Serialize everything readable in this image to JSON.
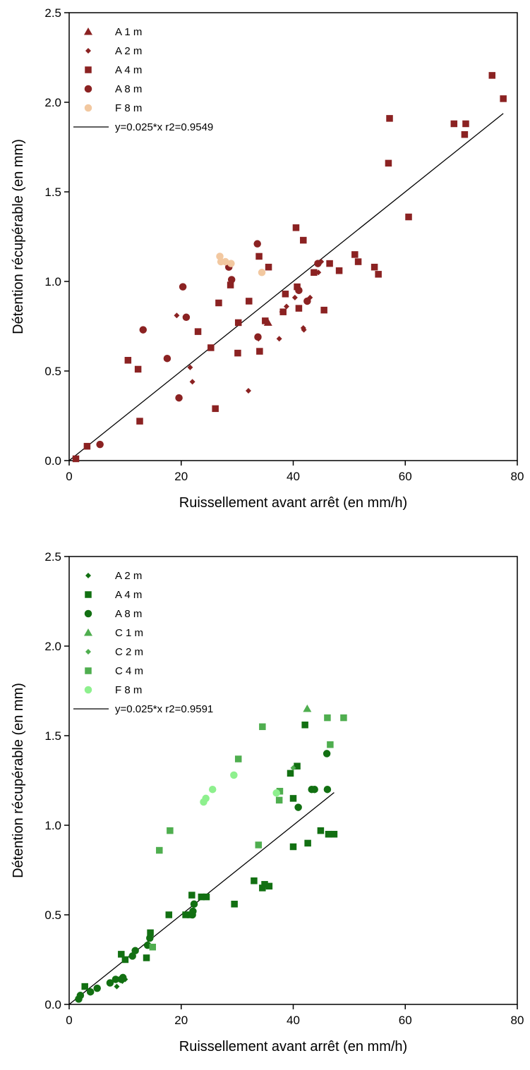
{
  "chart_data": [
    {
      "type": "scatter",
      "xlabel": "Ruissellement avant arrêt (en mm/h)",
      "ylabel": "Détention récupérable (en mm)",
      "xlim": [
        0,
        80
      ],
      "ylim": [
        0,
        2.5
      ],
      "xticks": [
        "0",
        "20",
        "40",
        "60",
        "80"
      ],
      "yticks": [
        "0.0",
        "0.5",
        "1.0",
        "1.5",
        "2.0",
        "2.5"
      ],
      "legend_position": "top-left",
      "fit": {
        "label": "y=0.025*x  r2=0.9549",
        "slope": 0.025,
        "x_range": [
          0,
          77.5
        ]
      },
      "series": [
        {
          "name": "A 1 m",
          "marker": "triangle",
          "color": "#8b2222",
          "points": [
            [
              35.5,
              0.77
            ]
          ]
        },
        {
          "name": "A 2 m",
          "marker": "diamond",
          "color": "#8b2222",
          "points": [
            [
              19.2,
              0.81
            ],
            [
              21.6,
              0.52
            ],
            [
              22.0,
              0.44
            ],
            [
              32.0,
              0.39
            ],
            [
              33.8,
              0.68
            ],
            [
              37.5,
              0.68
            ],
            [
              38.0,
              0.83
            ],
            [
              38.8,
              0.86
            ],
            [
              40.3,
              0.91
            ],
            [
              41.8,
              0.74
            ],
            [
              41.9,
              0.73
            ],
            [
              43.0,
              0.91
            ],
            [
              44.5,
              1.05
            ],
            [
              45.0,
              1.11
            ]
          ]
        },
        {
          "name": "A 4 m",
          "marker": "square",
          "color": "#8b2222",
          "points": [
            [
              1.2,
              0.01
            ],
            [
              3.2,
              0.08
            ],
            [
              10.5,
              0.56
            ],
            [
              12.3,
              0.51
            ],
            [
              12.6,
              0.22
            ],
            [
              23.0,
              0.72
            ],
            [
              25.3,
              0.63
            ],
            [
              26.1,
              0.29
            ],
            [
              26.7,
              0.88
            ],
            [
              28.8,
              0.98
            ],
            [
              30.2,
              0.77
            ],
            [
              30.1,
              0.6
            ],
            [
              32.1,
              0.89
            ],
            [
              33.9,
              1.14
            ],
            [
              34.0,
              0.61
            ],
            [
              35.0,
              0.78
            ],
            [
              35.6,
              1.08
            ],
            [
              38.2,
              0.83
            ],
            [
              38.6,
              0.93
            ],
            [
              40.5,
              1.3
            ],
            [
              40.7,
              0.97
            ],
            [
              41.0,
              0.85
            ],
            [
              41.8,
              1.23
            ],
            [
              43.7,
              1.05
            ],
            [
              45.5,
              0.84
            ],
            [
              46.5,
              1.1
            ],
            [
              48.2,
              1.06
            ],
            [
              51.0,
              1.15
            ],
            [
              51.6,
              1.11
            ],
            [
              54.5,
              1.08
            ],
            [
              55.2,
              1.04
            ],
            [
              57.0,
              1.66
            ],
            [
              57.2,
              1.91
            ],
            [
              60.6,
              1.36
            ],
            [
              68.7,
              1.88
            ],
            [
              70.6,
              1.82
            ],
            [
              70.8,
              1.88
            ],
            [
              75.5,
              2.15
            ],
            [
              77.5,
              2.02
            ]
          ]
        },
        {
          "name": "A 8 m",
          "marker": "circle",
          "color": "#8b2222",
          "points": [
            [
              5.5,
              0.09
            ],
            [
              13.2,
              0.73
            ],
            [
              17.5,
              0.57
            ],
            [
              19.6,
              0.35
            ],
            [
              20.3,
              0.97
            ],
            [
              20.9,
              0.8
            ],
            [
              28.5,
              1.08
            ],
            [
              29.0,
              1.01
            ],
            [
              33.6,
              1.21
            ],
            [
              33.7,
              0.69
            ],
            [
              41.0,
              0.95
            ],
            [
              42.5,
              0.89
            ],
            [
              44.4,
              1.1
            ]
          ]
        },
        {
          "name": "F 8 m",
          "marker": "circle",
          "color": "#f2c8a0",
          "points": [
            [
              26.9,
              1.14
            ],
            [
              27.1,
              1.11
            ],
            [
              27.9,
              1.11
            ],
            [
              28.9,
              1.1
            ],
            [
              34.4,
              1.05
            ]
          ]
        }
      ]
    },
    {
      "type": "scatter",
      "xlabel": "Ruissellement avant arrêt (en mm/h)",
      "ylabel": "Détention récupérable (en mm)",
      "xlim": [
        0,
        80
      ],
      "ylim": [
        0,
        2.5
      ],
      "xticks": [
        "0",
        "20",
        "40",
        "60",
        "80"
      ],
      "yticks": [
        "0.0",
        "0.5",
        "1.0",
        "1.5",
        "2.0",
        "2.5"
      ],
      "legend_position": "top-left",
      "fit": {
        "label": "y=0.025*x  r2=0.9591",
        "slope": 0.025,
        "x_range": [
          0,
          47.3
        ]
      },
      "series": [
        {
          "name": "A 2 m",
          "marker": "diamond",
          "color": "#127012",
          "points": [
            [
              8.5,
              0.1
            ],
            [
              9.5,
              0.13
            ],
            [
              10.0,
              0.14
            ]
          ]
        },
        {
          "name": "A 4 m",
          "marker": "square",
          "color": "#127012",
          "points": [
            [
              2.8,
              0.1
            ],
            [
              9.3,
              0.28
            ],
            [
              10.0,
              0.25
            ],
            [
              13.8,
              0.26
            ],
            [
              14.5,
              0.4
            ],
            [
              17.8,
              0.5
            ],
            [
              20.8,
              0.5
            ],
            [
              21.6,
              0.5
            ],
            [
              21.9,
              0.61
            ],
            [
              23.6,
              0.6
            ],
            [
              24.5,
              0.6
            ],
            [
              29.5,
              0.56
            ],
            [
              33.0,
              0.69
            ],
            [
              34.5,
              0.65
            ],
            [
              34.9,
              0.67
            ],
            [
              35.7,
              0.66
            ],
            [
              39.5,
              1.29
            ],
            [
              40.0,
              1.15
            ],
            [
              40.0,
              0.88
            ],
            [
              40.7,
              1.33
            ],
            [
              42.1,
              1.56
            ],
            [
              42.6,
              0.9
            ],
            [
              44.9,
              0.97
            ],
            [
              46.3,
              0.95
            ],
            [
              47.3,
              0.95
            ]
          ]
        },
        {
          "name": "A 8 m",
          "marker": "circle",
          "color": "#127012",
          "points": [
            [
              1.7,
              0.03
            ],
            [
              2.0,
              0.05
            ],
            [
              3.8,
              0.07
            ],
            [
              5.0,
              0.09
            ],
            [
              7.3,
              0.12
            ],
            [
              8.3,
              0.14
            ],
            [
              9.3,
              0.14
            ],
            [
              9.6,
              0.15
            ],
            [
              11.3,
              0.27
            ],
            [
              11.8,
              0.3
            ],
            [
              14.0,
              0.33
            ],
            [
              14.4,
              0.37
            ],
            [
              22.0,
              0.5
            ],
            [
              22.1,
              0.52
            ],
            [
              22.3,
              0.56
            ],
            [
              40.9,
              1.1
            ],
            [
              43.3,
              1.2
            ],
            [
              43.8,
              1.2
            ],
            [
              46.0,
              1.4
            ],
            [
              46.1,
              1.2
            ]
          ]
        },
        {
          "name": "C 1 m",
          "marker": "triangle",
          "color": "#4fae4f",
          "points": [
            [
              42.5,
              1.65
            ]
          ]
        },
        {
          "name": "C 2 m",
          "marker": "diamond",
          "color": "#4fae4f",
          "points": [
            [
              40.0,
              1.32
            ]
          ]
        },
        {
          "name": "C 4 m",
          "marker": "square",
          "color": "#4fae4f",
          "points": [
            [
              14.9,
              0.32
            ],
            [
              16.1,
              0.86
            ],
            [
              18.0,
              0.97
            ],
            [
              30.2,
              1.37
            ],
            [
              33.8,
              0.89
            ],
            [
              34.5,
              1.55
            ],
            [
              37.6,
              1.19
            ],
            [
              37.5,
              1.14
            ],
            [
              46.1,
              1.6
            ],
            [
              46.6,
              1.45
            ],
            [
              49.0,
              1.6
            ]
          ]
        },
        {
          "name": "F 8 m",
          "marker": "circle",
          "color": "#8ef08e",
          "points": [
            [
              24.0,
              1.13
            ],
            [
              24.4,
              1.15
            ],
            [
              25.6,
              1.2
            ],
            [
              29.4,
              1.28
            ],
            [
              37.0,
              1.18
            ]
          ]
        }
      ]
    }
  ]
}
